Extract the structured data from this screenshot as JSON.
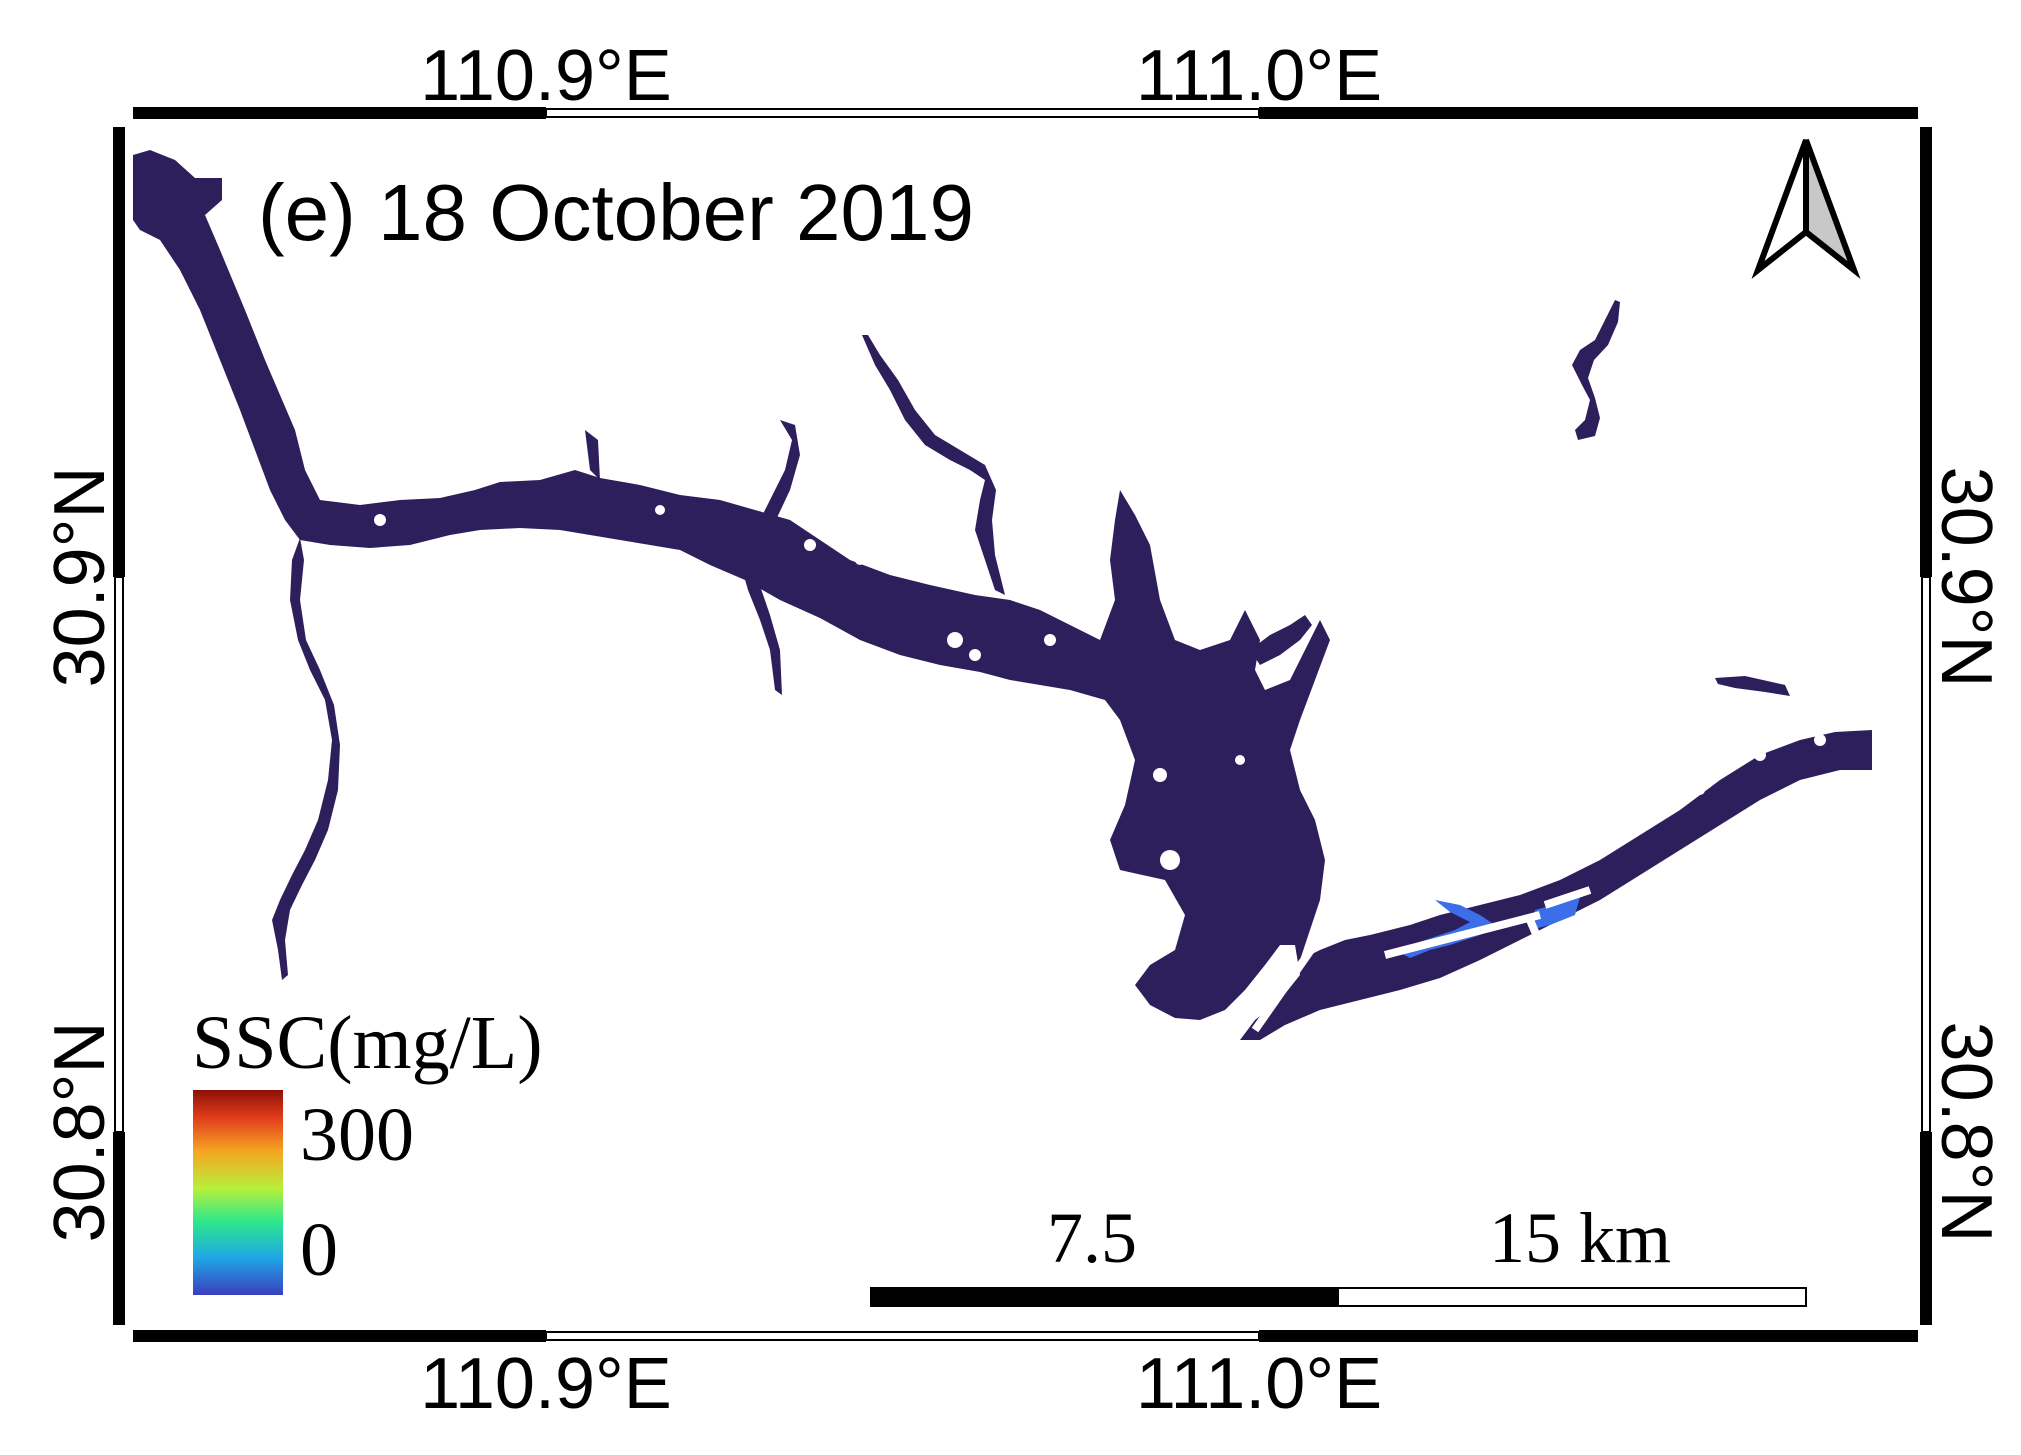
{
  "map": {
    "title": "(e) 18 October 2019",
    "top_axis_labels": [
      "110.9°E",
      "111.0°E"
    ],
    "bottom_axis_labels": [
      "110.9°E",
      "111.0°E"
    ],
    "left_axis_labels": [
      "30.9°N",
      "30.8°N"
    ],
    "right_axis_labels": [
      "30.9°N",
      "30.8°N"
    ],
    "legend": {
      "title": "SSC(mg/L)",
      "max_label": "300",
      "min_label": "0",
      "colors": [
        "#3a3fbe",
        "#1fa6e6",
        "#2ee88a",
        "#b8f03a",
        "#f5a623",
        "#e3401c",
        "#8e0f06"
      ]
    },
    "scale_bar": {
      "mid_label": "7.5",
      "end_label": "15 km"
    },
    "north_arrow": {
      "icon": "north-arrow-icon"
    },
    "water_color": "#2d1f5c",
    "highlight_color": "#3b6ee8"
  }
}
